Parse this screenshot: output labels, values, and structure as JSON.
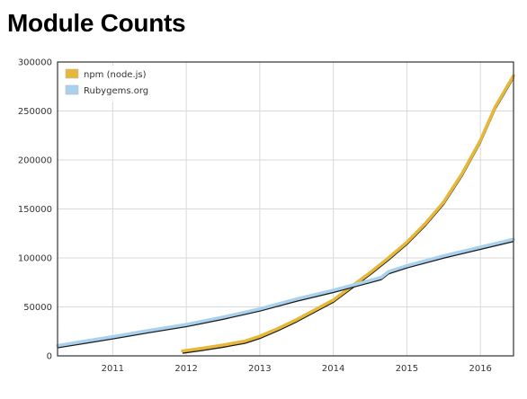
{
  "title": "Module Counts",
  "chart_data": {
    "type": "line",
    "title": "Module Counts",
    "xlabel": "",
    "ylabel": "",
    "xlim": [
      2010.25,
      2016.45
    ],
    "ylim": [
      0,
      300000
    ],
    "xticks": [
      2011,
      2012,
      2013,
      2014,
      2015,
      2016
    ],
    "xtick_labels": [
      "2011",
      "2012",
      "2013",
      "2014",
      "2015",
      "2016"
    ],
    "yticks": [
      0,
      50000,
      100000,
      150000,
      200000,
      250000,
      300000
    ],
    "ytick_labels": [
      "0",
      "50000",
      "100000",
      "150000",
      "200000",
      "250000",
      "300000"
    ],
    "grid": true,
    "legend_position": "top-left",
    "series": [
      {
        "name": "npm (node.js)",
        "color": "#e6b83a",
        "points": [
          [
            2011.95,
            5000
          ],
          [
            2012.2,
            7500
          ],
          [
            2012.5,
            11000
          ],
          [
            2012.8,
            15000
          ],
          [
            2013.0,
            20000
          ],
          [
            2013.25,
            28000
          ],
          [
            2013.5,
            37000
          ],
          [
            2013.75,
            47000
          ],
          [
            2014.0,
            57000
          ],
          [
            2014.25,
            71000
          ],
          [
            2014.5,
            85000
          ],
          [
            2014.75,
            100000
          ],
          [
            2015.0,
            116000
          ],
          [
            2015.25,
            135000
          ],
          [
            2015.5,
            157000
          ],
          [
            2015.75,
            186000
          ],
          [
            2016.0,
            220000
          ],
          [
            2016.2,
            254000
          ],
          [
            2016.45,
            286000
          ]
        ]
      },
      {
        "name": "Rubygems.org",
        "color": "#a9d1ee",
        "points": [
          [
            2010.25,
            10500
          ],
          [
            2010.5,
            13500
          ],
          [
            2011.0,
            19500
          ],
          [
            2011.5,
            26000
          ],
          [
            2012.0,
            32000
          ],
          [
            2012.5,
            39500
          ],
          [
            2013.0,
            48000
          ],
          [
            2013.5,
            58000
          ],
          [
            2014.0,
            67000
          ],
          [
            2014.5,
            77000
          ],
          [
            2014.65,
            80000
          ],
          [
            2014.75,
            86000
          ],
          [
            2015.0,
            92000
          ],
          [
            2015.5,
            102000
          ],
          [
            2016.0,
            111000
          ],
          [
            2016.45,
            119000
          ]
        ]
      }
    ]
  }
}
